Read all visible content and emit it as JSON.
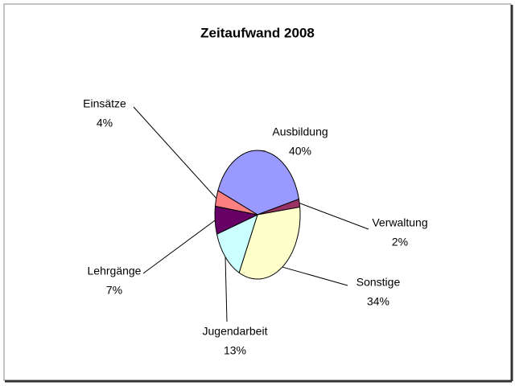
{
  "chart_data": {
    "type": "pie",
    "title": "Zeitaufwand 2008",
    "categories": [
      "Ausbildung",
      "Verwaltung",
      "Sonstige",
      "Jugendarbeit",
      "Lehrgänge",
      "Einsätze"
    ],
    "values": [
      40,
      2,
      34,
      13,
      7,
      4
    ],
    "value_labels": [
      "40%",
      "2%",
      "34%",
      "13%",
      "7%",
      "4%"
    ],
    "colors": [
      "#9999ff",
      "#993366",
      "#ffffcc",
      "#ccffff",
      "#660066",
      "#ff8080"
    ]
  }
}
